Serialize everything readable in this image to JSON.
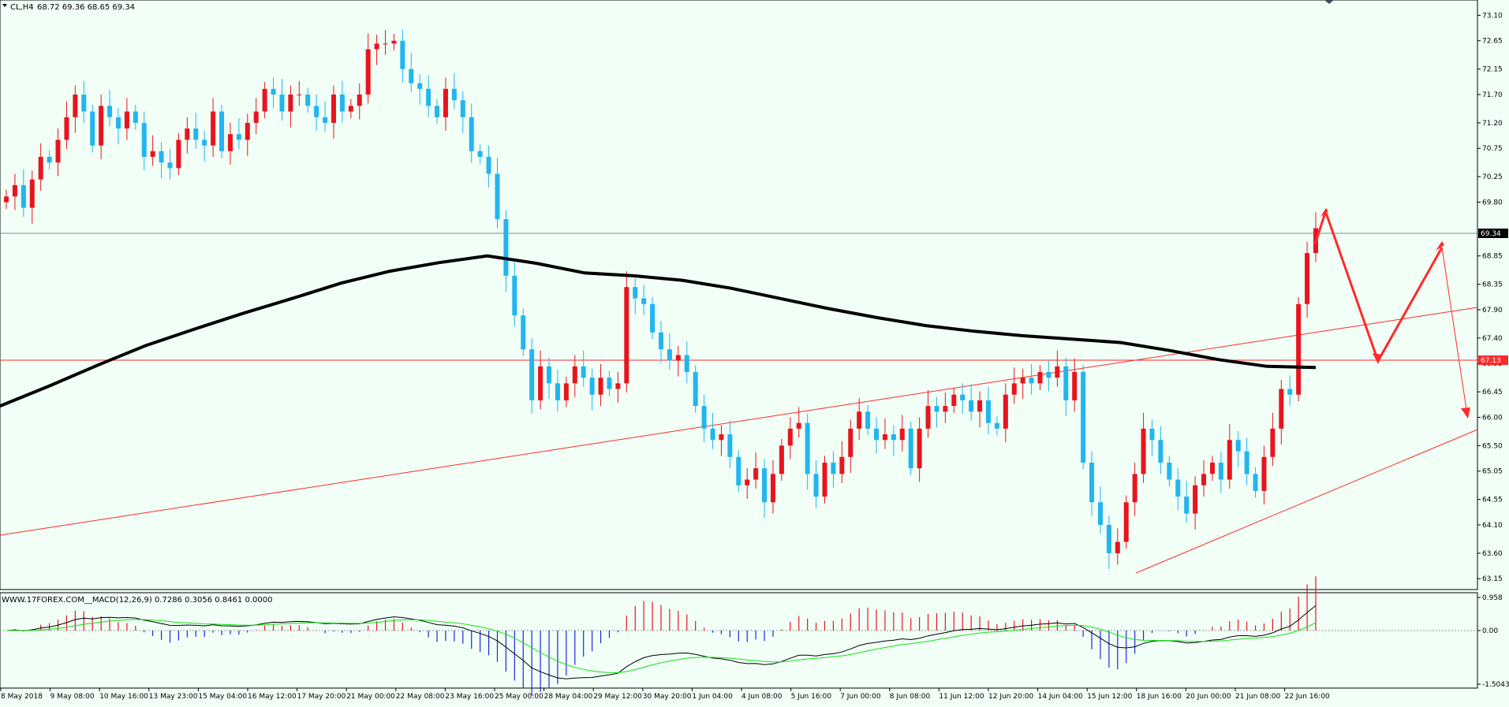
{
  "header": {
    "symbol": "CL,H4",
    "ohlc": "68.72 69.36 68.65 69.34",
    "indicator": "WWW.17FOREX.COM__MACD(12,26,9) 0.7286 0.3056 0.8461 0.0000"
  },
  "colors": {
    "background": "#f1fff6",
    "bull": "#e8141e",
    "bear": "#22b5ef",
    "ma": "#000000",
    "trend": "#ff2a2a",
    "macd_hist_pos": "#e8141e",
    "macd_hist_neg": "#1d28d4",
    "macd_line": "#000000",
    "signal_line": "#18e018"
  },
  "chart_data": [
    {
      "type": "candlestick",
      "price_axis": {
        "range": [
          63.0,
          73.3
        ],
        "ticks": [
          "73.10",
          "72.65",
          "72.15",
          "71.70",
          "71.20",
          "70.75",
          "70.25",
          "69.80",
          "69.34",
          "68.85",
          "68.35",
          "67.90",
          "67.40",
          "67.13",
          "66.95",
          "66.45",
          "66.00",
          "65.50",
          "65.05",
          "64.55",
          "64.10",
          "63.60",
          "63.15"
        ],
        "current_price": "69.34",
        "level_label": "67.13"
      },
      "time_axis": {
        "labels": [
          "8 May 2018",
          "9 May 08:00",
          "10 May 16:00",
          "13 May 23:00",
          "15 May 04:00",
          "16 May 12:00",
          "17 May 20:00",
          "21 May 00:00",
          "22 May 08:00",
          "23 May 16:00",
          "25 May 00:00",
          "28 May 04:00",
          "29 May 12:00",
          "30 May 20:00",
          "1 Jun 04:00",
          "4 Jun 08:00",
          "5 Jun 16:00",
          "7 Jun 00:00",
          "8 Jun 08:00",
          "11 Jun 12:00",
          "12 Jun 20:00",
          "14 Jun 04:00",
          "15 Jun 12:00",
          "18 Jun 16:00",
          "20 Jun 00:00",
          "21 Jun 08:00",
          "22 Jun 16:00"
        ]
      },
      "candles_close": [
        69.9,
        70.1,
        69.7,
        70.2,
        70.6,
        70.5,
        70.9,
        71.3,
        71.7,
        71.4,
        70.8,
        71.5,
        71.3,
        71.1,
        71.4,
        71.2,
        70.6,
        70.7,
        70.5,
        70.4,
        70.9,
        71.1,
        70.9,
        70.8,
        71.4,
        70.7,
        71.0,
        70.9,
        71.2,
        71.4,
        71.8,
        71.7,
        71.4,
        71.7,
        71.7,
        71.5,
        71.3,
        71.2,
        71.7,
        71.4,
        71.5,
        71.7,
        72.5,
        72.6,
        72.6,
        72.65,
        72.15,
        71.9,
        71.8,
        71.5,
        71.3,
        71.8,
        71.6,
        71.3,
        70.7,
        70.6,
        70.3,
        69.5,
        68.5,
        67.8,
        67.2,
        66.3,
        66.9,
        66.6,
        66.3,
        66.6,
        66.9,
        66.7,
        66.4,
        66.7,
        66.5,
        66.6,
        68.3,
        68.1,
        68.0,
        67.5,
        67.2,
        67.0,
        67.1,
        66.8,
        66.2,
        65.8,
        65.6,
        65.7,
        65.3,
        64.8,
        64.9,
        65.1,
        64.5,
        65.0,
        65.5,
        65.8,
        65.9,
        65.0,
        64.6,
        65.2,
        65.0,
        65.3,
        65.8,
        66.1,
        65.8,
        65.6,
        65.7,
        65.6,
        65.8,
        65.1,
        65.8,
        66.2,
        66.1,
        66.2,
        66.4,
        66.3,
        66.1,
        66.3,
        65.9,
        65.8,
        66.4,
        66.6,
        66.7,
        66.6,
        66.8,
        66.7,
        66.9,
        66.3,
        66.8,
        65.2,
        64.5,
        64.1,
        63.6,
        63.8,
        64.5,
        65.0,
        65.8,
        65.6,
        65.2,
        64.9,
        64.6,
        64.3,
        64.8,
        65.0,
        65.2,
        64.9,
        65.6,
        65.4,
        65.0,
        64.7,
        65.3,
        65.8,
        66.5,
        66.4,
        68.0,
        68.9,
        69.34
      ],
      "moving_average": [
        66.2,
        66.55,
        66.92,
        67.27,
        67.56,
        67.84,
        68.1,
        68.37,
        68.58,
        68.73,
        68.85,
        68.72,
        68.55,
        68.5,
        68.42,
        68.28,
        68.1,
        67.92,
        67.76,
        67.62,
        67.52,
        67.44,
        67.38,
        67.32,
        67.18,
        67.02,
        66.9,
        66.88
      ],
      "trend_lines": [
        {
          "from": [
            "8 May 2018",
            64.2
          ],
          "to": [
            "22 Jun 16:00+",
            68.0
          ]
        },
        {
          "from": [
            "15 Jun 12:00",
            63.5
          ],
          "to": [
            "22 Jun 16:00+",
            66.0
          ]
        }
      ],
      "horizontal_levels": [
        69.34,
        67.13
      ],
      "projection_path": [
        [
          69.34,
          69.7
        ],
        [
          69.7,
          67.13
        ],
        [
          67.13,
          68.95
        ],
        [
          68.95,
          66.1
        ]
      ]
    },
    {
      "type": "macd",
      "axis_ticks": [
        "0.958",
        "0.00",
        "-1.5043"
      ],
      "params": "12,26,9",
      "values": {
        "main": 0.7286,
        "signal": 0.3056,
        "histogram": 0.8461,
        "zero": 0.0
      }
    }
  ]
}
